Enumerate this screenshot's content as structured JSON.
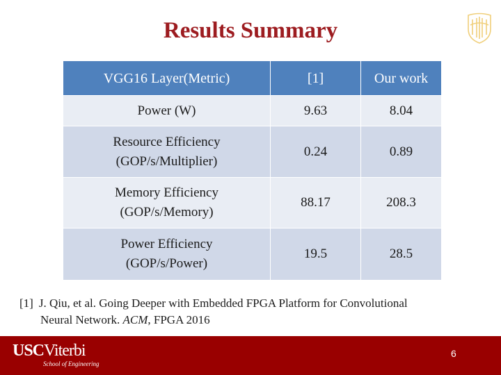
{
  "slide": {
    "title": "Results Summary",
    "page_number": "6"
  },
  "table": {
    "headers": [
      "VGG16 Layer(Metric)",
      "[1]",
      "Our work"
    ],
    "rows": [
      {
        "metric": [
          "Power (W)"
        ],
        "ref": "9.63",
        "ours": "8.04"
      },
      {
        "metric": [
          "Resource Efficiency",
          "(GOP/s/Multiplier)"
        ],
        "ref": "0.24",
        "ours": "0.89"
      },
      {
        "metric": [
          "Memory Efficiency",
          "(GOP/s/Memory)"
        ],
        "ref": "88.17",
        "ours": "208.3"
      },
      {
        "metric": [
          "Power Efficiency",
          "(GOP/s/Power)"
        ],
        "ref": "19.5",
        "ours": "28.5"
      }
    ]
  },
  "citation": {
    "marker": "[1]",
    "text_before_venue": "J. Qiu, et al. Going Deeper with Embedded FPGA Platform for Convolutional",
    "text_line2_prefix": "Neural Network.",
    "venue": "ACM",
    "text_after_venue": ", FPGA 2016"
  },
  "footer": {
    "logo_usc": "USC",
    "logo_viterbi": "Viterbi",
    "logo_subtitle": "School of Engineering",
    "color": "#990000"
  },
  "colors": {
    "title": "#9d1c20",
    "header_fill": "#4f81bd",
    "row_light": "#e9edf4",
    "row_dark": "#d0d8e8"
  },
  "icons": {
    "corner_logo": "usc-seal-icon"
  }
}
